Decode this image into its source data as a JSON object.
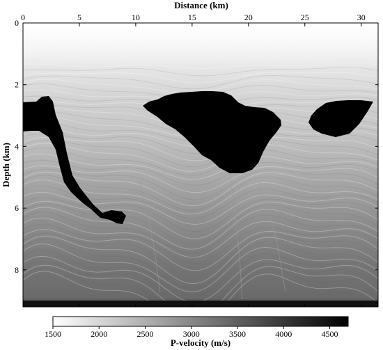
{
  "chart_data": {
    "type": "heatmap",
    "title": "",
    "xlabel": "Distance (km)",
    "ylabel": "Depth (km)",
    "xlim": [
      0,
      31.5
    ],
    "ylim": [
      0,
      9.2
    ],
    "x_ticks": [
      0,
      5,
      10,
      15,
      20,
      25,
      30
    ],
    "y_ticks": [
      0,
      2,
      4,
      6,
      8
    ],
    "x_axis_position": "top",
    "y_axis_direction": "down",
    "grid": false,
    "colorscale": "gray_reversed",
    "colorbar": {
      "label": "P-velocity (m/s)",
      "range": [
        1500,
        4700
      ],
      "ticks": [
        1500,
        2000,
        2500,
        3000,
        3500,
        4000,
        4500
      ],
      "placement": "bottom"
    },
    "features": [
      {
        "name": "water",
        "velocity": 1500,
        "depth_range_km": [
          0,
          1.0
        ]
      },
      {
        "name": "sediment_layers",
        "velocity_range": [
          1800,
          3900
        ],
        "depth_range_km": [
          1.0,
          9.2
        ]
      },
      {
        "name": "salt_body_left",
        "velocity": 4500,
        "x_range_km": [
          0,
          9.2
        ],
        "depth_range_km": [
          2.4,
          6.5
        ]
      },
      {
        "name": "salt_body_center",
        "velocity": 4500,
        "x_range_km": [
          10.8,
          23.2
        ],
        "depth_range_km": [
          2.3,
          4.9
        ]
      },
      {
        "name": "salt_body_right",
        "velocity": 4500,
        "x_range_km": [
          25.2,
          30.2
        ],
        "depth_range_km": [
          2.5,
          3.7
        ]
      }
    ]
  }
}
